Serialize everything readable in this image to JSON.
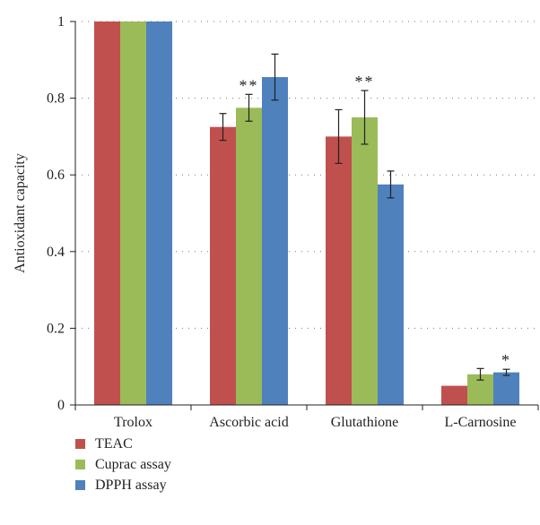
{
  "chart_data": {
    "type": "bar",
    "ylabel": "Antioxidant capacity",
    "ylim": [
      0,
      1
    ],
    "yticks": [
      "0",
      "0.2",
      "0.4",
      "0.6",
      "0.8",
      "1"
    ],
    "grid": "dotted horizontal",
    "legend_position": "bottom-left",
    "categories": [
      "Trolox",
      "Ascorbic acid",
      "Glutathione",
      "L-Carnosine"
    ],
    "series": [
      {
        "name": "TEAC",
        "color": "#c0504d",
        "values": [
          1.0,
          0.725,
          0.7,
          0.05
        ],
        "errors": [
          0,
          0.035,
          0.07,
          0.0
        ]
      },
      {
        "name": "Cuprac assay",
        "color": "#9bbb59",
        "values": [
          1.0,
          0.775,
          0.75,
          0.08
        ],
        "errors": [
          0,
          0.035,
          0.07,
          0.015
        ]
      },
      {
        "name": "DPPH assay",
        "color": "#4f81bd",
        "values": [
          1.0,
          0.855,
          0.575,
          0.085
        ],
        "errors": [
          0,
          0.06,
          0.035,
          0.008
        ]
      }
    ],
    "annotations": [
      {
        "category": "Ascorbic acid",
        "series": "Cuprac assay",
        "text": "**"
      },
      {
        "category": "Glutathione",
        "series": "Cuprac assay",
        "text": "**"
      },
      {
        "category": "L-Carnosine",
        "series": "DPPH assay",
        "text": "*"
      }
    ]
  }
}
